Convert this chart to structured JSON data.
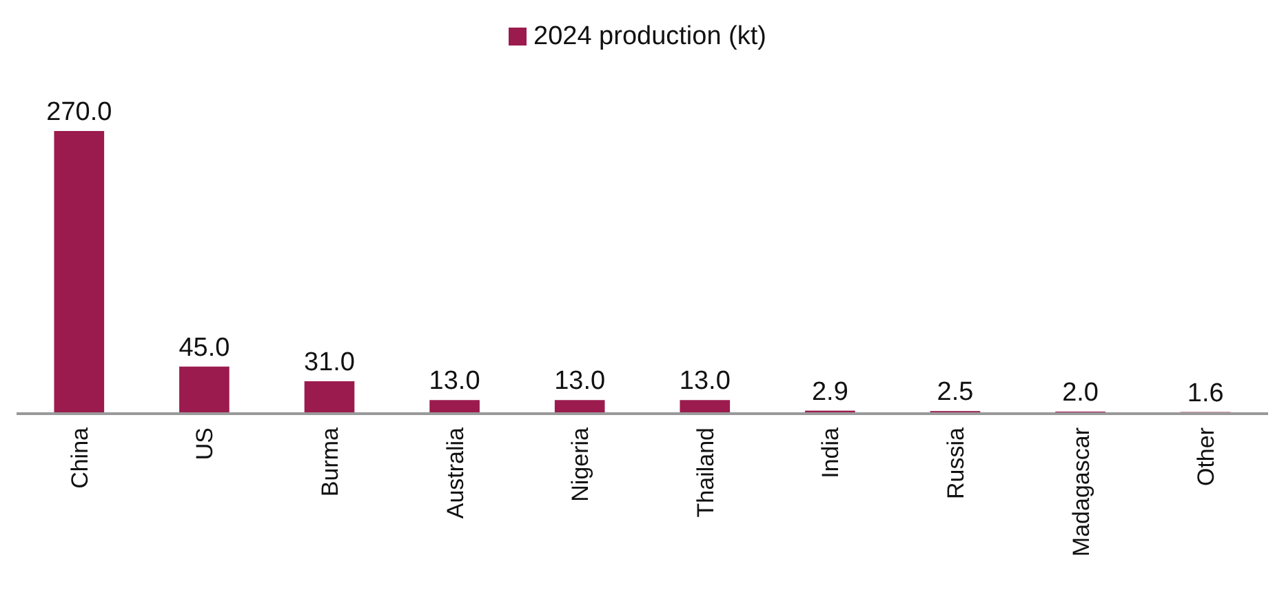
{
  "chart_data": {
    "type": "bar",
    "categories": [
      "China",
      "US",
      "Burma",
      "Australia",
      "Nigeria",
      "Thailand",
      "India",
      "Russia",
      "Madagascar",
      "Other"
    ],
    "series": [
      {
        "name": "2024  production (kt)",
        "color": "#9b1b4e",
        "values": [
          270.0,
          45.0,
          31.0,
          13.0,
          13.0,
          13.0,
          2.9,
          2.5,
          2.0,
          1.6
        ],
        "value_labels": [
          "270.0",
          "45.0",
          "31.0",
          "13.0",
          "13.0",
          "13.0",
          "2.9",
          "2.5",
          "2.0",
          "1.6"
        ]
      }
    ],
    "legend": "top"
  }
}
